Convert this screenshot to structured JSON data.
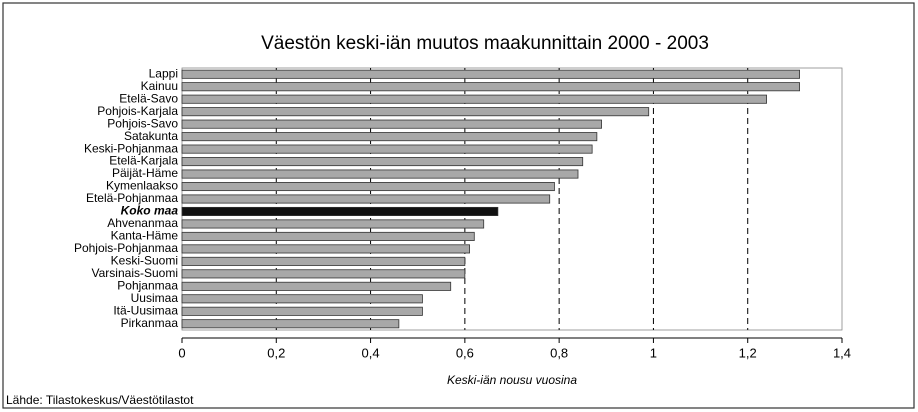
{
  "chart_data": {
    "type": "bar",
    "orientation": "horizontal",
    "title": "Väestön keski-iän muutos maakunnittain 2000 - 2003",
    "x_label": "Keski-iän nousu vuosina",
    "source": "Lähde: Tilastokeskus/Väestötilastot",
    "categories": [
      "Lappi",
      "Kainuu",
      "Etelä-Savo",
      "Pohjois-Karjala",
      "Pohjois-Savo",
      "Satakunta",
      "Keski-Pohjanmaa",
      "Etelä-Karjala",
      "Päijät-Häme",
      "Kymenlaakso",
      "Etelä-Pohjanmaa",
      "Koko maa",
      "Ahvenanmaa",
      "Kanta-Häme",
      "Pohjois-Pohjanmaa",
      "Keski-Suomi",
      "Varsinais-Suomi",
      "Pohjanmaa",
      "Uusimaa",
      "Itä-Uusimaa",
      "Pirkanmaa"
    ],
    "values": [
      1.31,
      1.31,
      1.24,
      0.99,
      0.89,
      0.88,
      0.87,
      0.85,
      0.84,
      0.79,
      0.78,
      0.67,
      0.64,
      0.62,
      0.61,
      0.6,
      0.6,
      0.57,
      0.51,
      0.51,
      0.46
    ],
    "colors": [
      "#a8a8a8",
      "#a8a8a8",
      "#a8a8a8",
      "#a8a8a8",
      "#a8a8a8",
      "#a8a8a8",
      "#a8a8a8",
      "#a8a8a8",
      "#a8a8a8",
      "#a8a8a8",
      "#a8a8a8",
      "#111111",
      "#a8a8a8",
      "#a8a8a8",
      "#a8a8a8",
      "#a8a8a8",
      "#a8a8a8",
      "#a8a8a8",
      "#a8a8a8",
      "#a8a8a8",
      "#a8a8a8"
    ],
    "highlight": "Koko maa",
    "xlim": [
      0,
      1.4
    ],
    "xticks": [
      0,
      {
        "value": 0.2,
        "label": "0,2"
      },
      {
        "value": 0.4,
        "label": "0,4"
      },
      {
        "value": 0.6,
        "label": "0,6"
      },
      {
        "value": 0.8,
        "label": "0,8"
      },
      1,
      {
        "value": 1.2,
        "label": "1,2"
      },
      {
        "value": 1.4,
        "label": "1,4"
      }
    ],
    "grid": true
  }
}
